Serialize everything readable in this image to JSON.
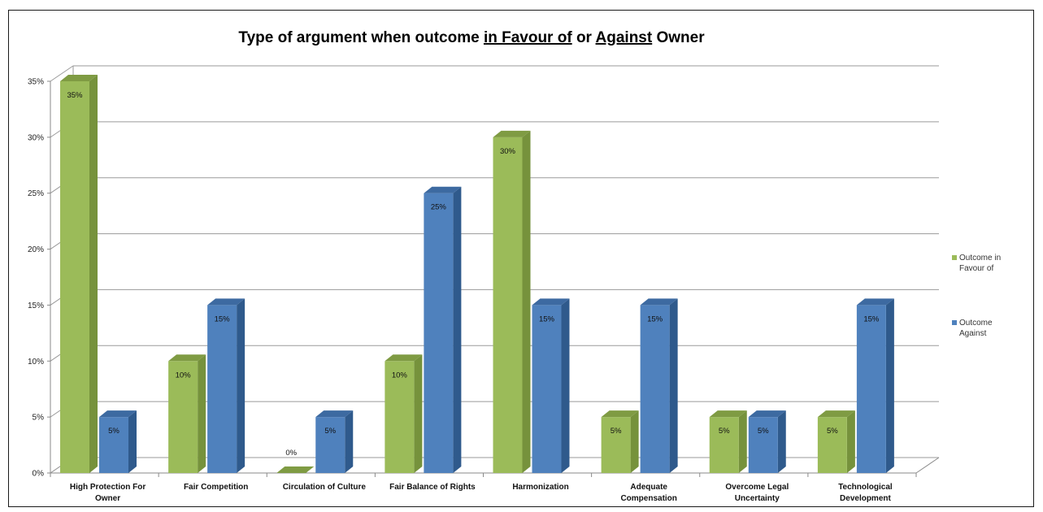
{
  "chart_data": {
    "type": "bar",
    "title_parts": [
      "Type of argument when outcome ",
      "in Favour of",
      " or ",
      "Against",
      " Owner"
    ],
    "categories": [
      [
        "High Protection For",
        "Owner"
      ],
      [
        "Fair Competition"
      ],
      [
        "Circulation of Culture"
      ],
      [
        "Fair Balance of Rights"
      ],
      [
        "Harmonization"
      ],
      [
        "Adequate",
        "Compensation"
      ],
      [
        "Overcome Legal",
        "Uncertainty"
      ],
      [
        "Technological",
        "Development"
      ]
    ],
    "series": [
      {
        "legend": [
          "Outcome in",
          "Favour of"
        ],
        "values": [
          35,
          10,
          0,
          10,
          30,
          5,
          5,
          5
        ],
        "labels": [
          "35%",
          "10%",
          "0%",
          "10%",
          "30%",
          "5%",
          "5%",
          "5%"
        ],
        "color": "#9BBB59",
        "side": "#76923C",
        "top": "#7F9B43"
      },
      {
        "legend": [
          "Outcome",
          "Against"
        ],
        "values": [
          5,
          15,
          5,
          25,
          15,
          15,
          5,
          15
        ],
        "labels": [
          "5%",
          "15%",
          "5%",
          "25%",
          "15%",
          "15%",
          "5%",
          "15%"
        ],
        "color": "#4F81BD",
        "side": "#2F5A8C",
        "top": "#3D6AA1"
      }
    ],
    "yticks": [
      "0%",
      "5%",
      "10%",
      "15%",
      "20%",
      "25%",
      "30%",
      "35%"
    ],
    "ylim": [
      0,
      35
    ],
    "grid": true,
    "legend_position": "right"
  }
}
